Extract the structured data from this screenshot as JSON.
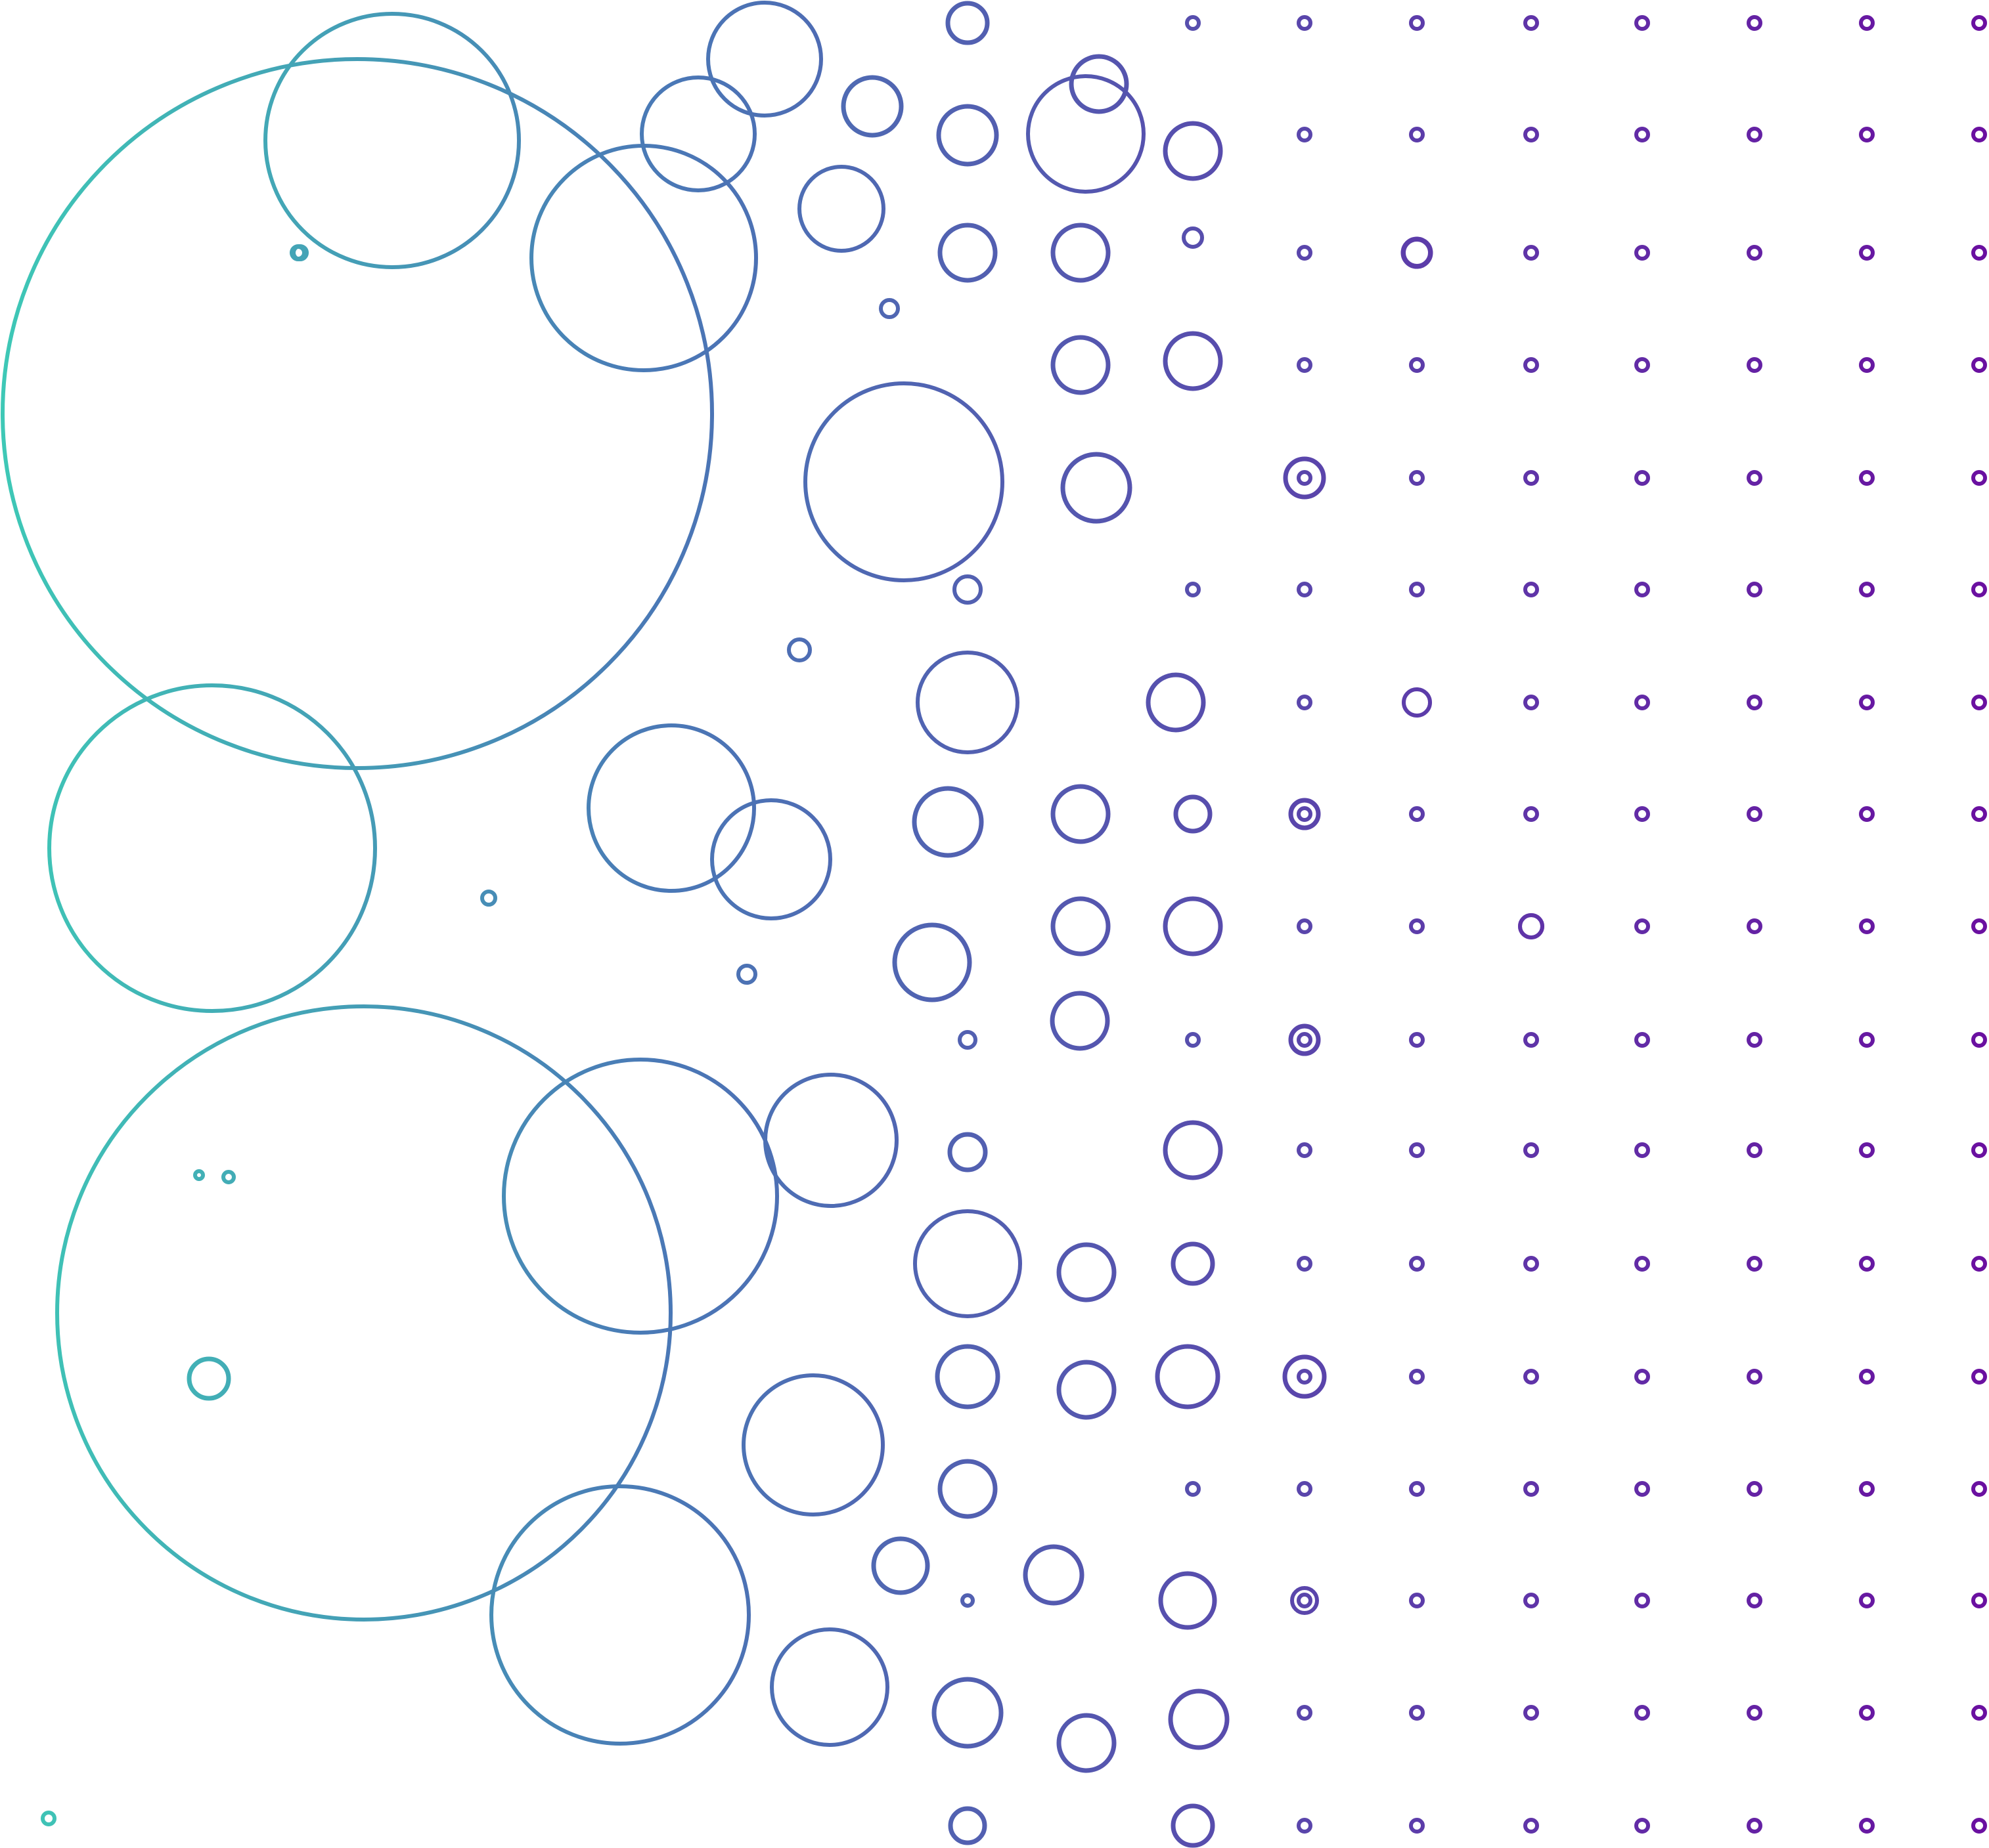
{
  "artwork": {
    "kind": "decorative-outlined-circles-pattern",
    "colors": {
      "gradient_start": "#3ec8b6",
      "gradient_mid": "#4a79b6",
      "gradient_end": "#6a0fa0",
      "background": "#ffffff"
    }
  }
}
